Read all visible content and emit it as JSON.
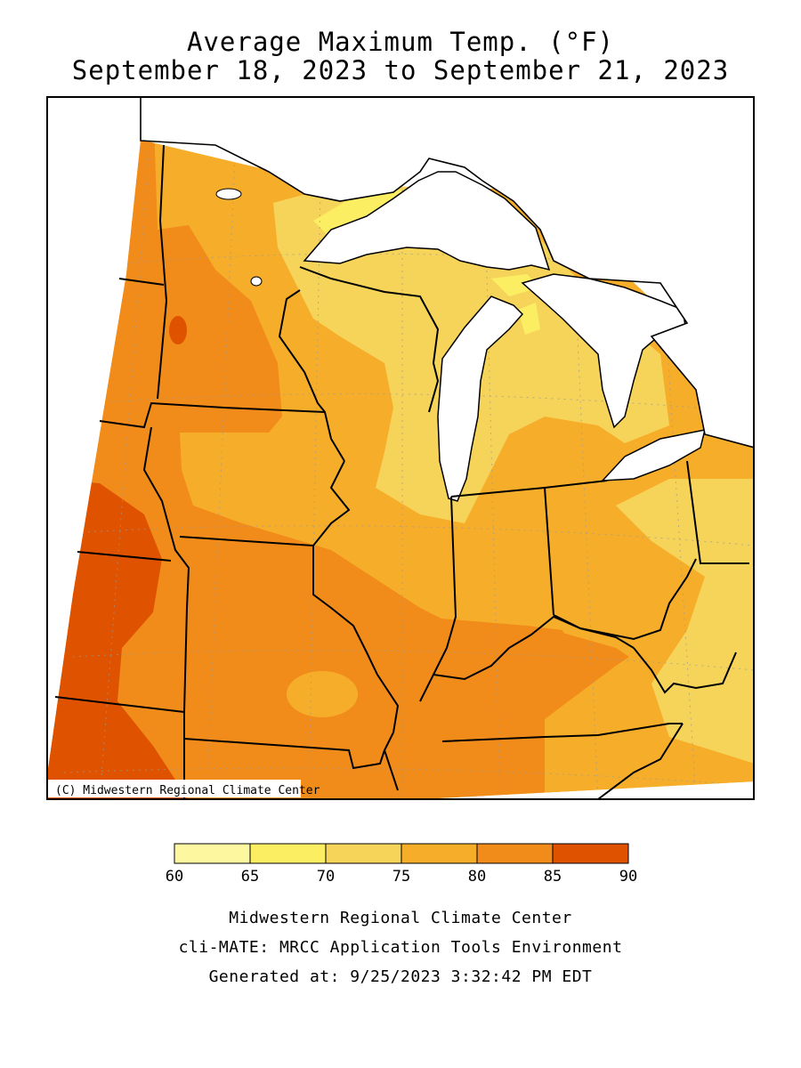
{
  "title": "Average Maximum Temp. (°F)",
  "subtitle": "September 18, 2023 to September 21, 2023",
  "copyright": "(C) Midwestern Regional Climate Center",
  "legend": {
    "ticks": [
      "60",
      "65",
      "70",
      "75",
      "80",
      "85",
      "90"
    ],
    "colors": [
      "#fdf7a0",
      "#fbee63",
      "#f6d45a",
      "#f6ae2a",
      "#f18b1a",
      "#de5200"
    ]
  },
  "footer": {
    "line1": "Midwestern Regional Climate Center",
    "line2": "cli-MATE: MRCC Application Tools Environment",
    "line3": "Generated at: 9/25/2023 3:32:42 PM EDT"
  }
}
